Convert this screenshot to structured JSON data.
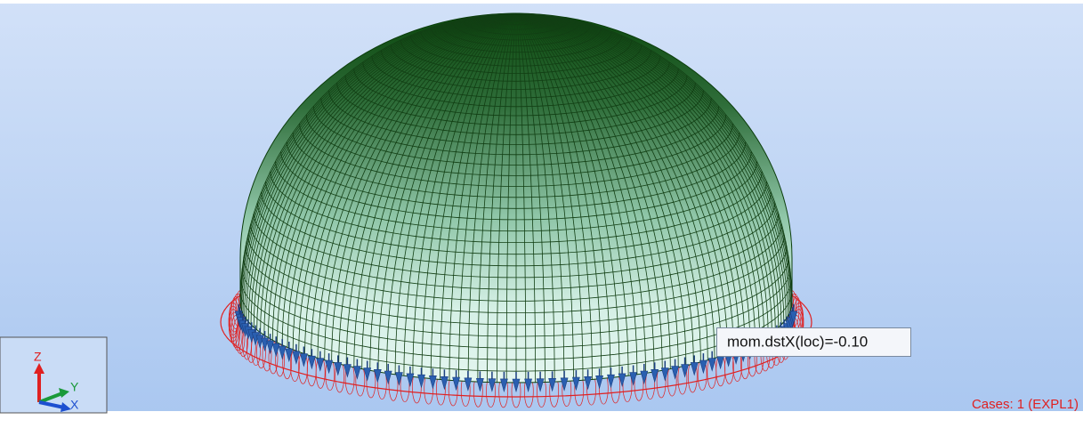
{
  "viewport": {
    "axes": {
      "z": "Z",
      "y": "Y",
      "x": "X"
    },
    "tooltip": "mom.dstX(loc)=-0.10",
    "cases": "Cases: 1 (EXPL1)"
  }
}
